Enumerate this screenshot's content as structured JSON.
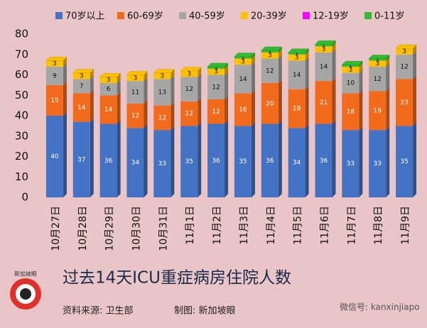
{
  "chart_data": {
    "type": "stacked_bar_3d",
    "title": "过去14天ICU重症病房住院人数",
    "source_note": "资料来源:  卫生部",
    "credit": "制图:  新加坡眼",
    "watermark": "微信号: kanxinjiapo",
    "logo": "新加坡眼",
    "categories": [
      "10月27日",
      "10月28日",
      "10月29日",
      "10月30日",
      "10月31日",
      "11月1日",
      "11月2日",
      "11月3日",
      "11月4日",
      "11月5日",
      "11月6日",
      "11月7日",
      "11月8日",
      "11月9日"
    ],
    "series": [
      {
        "name": "70岁以上",
        "color": "#4472c4",
        "values": [
          40,
          37,
          36,
          34,
          33,
          35,
          36,
          35,
          36,
          34,
          36,
          33,
          33,
          35
        ]
      },
      {
        "name": "60-69岁",
        "color": "#f26a1b",
        "values": [
          15,
          14,
          14,
          12,
          12,
          12,
          12,
          16,
          20,
          19,
          21,
          18,
          19,
          23
        ]
      },
      {
        "name": "40-59岁",
        "color": "#a6a6a6",
        "values": [
          9,
          7,
          6,
          11,
          13,
          12,
          12,
          14,
          12,
          14,
          14,
          10,
          12,
          12
        ]
      },
      {
        "name": "20-39岁",
        "color": "#ffc000",
        "values": [
          3,
          3,
          3,
          3,
          3,
          3,
          3,
          3,
          3,
          3,
          3,
          3,
          3,
          3
        ]
      },
      {
        "name": "12-19岁",
        "color": "#ff00ff",
        "values": [
          0,
          0,
          0,
          0,
          0,
          0,
          0,
          0,
          0,
          0,
          0,
          0,
          0,
          0
        ]
      },
      {
        "name": "0-11岁",
        "color": "#33bb33",
        "values": [
          0,
          0,
          0,
          0,
          0,
          0,
          1,
          1,
          1,
          1,
          1,
          1,
          1,
          0
        ]
      }
    ],
    "ylim": [
      0,
      80
    ],
    "yticks": [
      0,
      10,
      20,
      30,
      40,
      50,
      60,
      70,
      80
    ]
  }
}
